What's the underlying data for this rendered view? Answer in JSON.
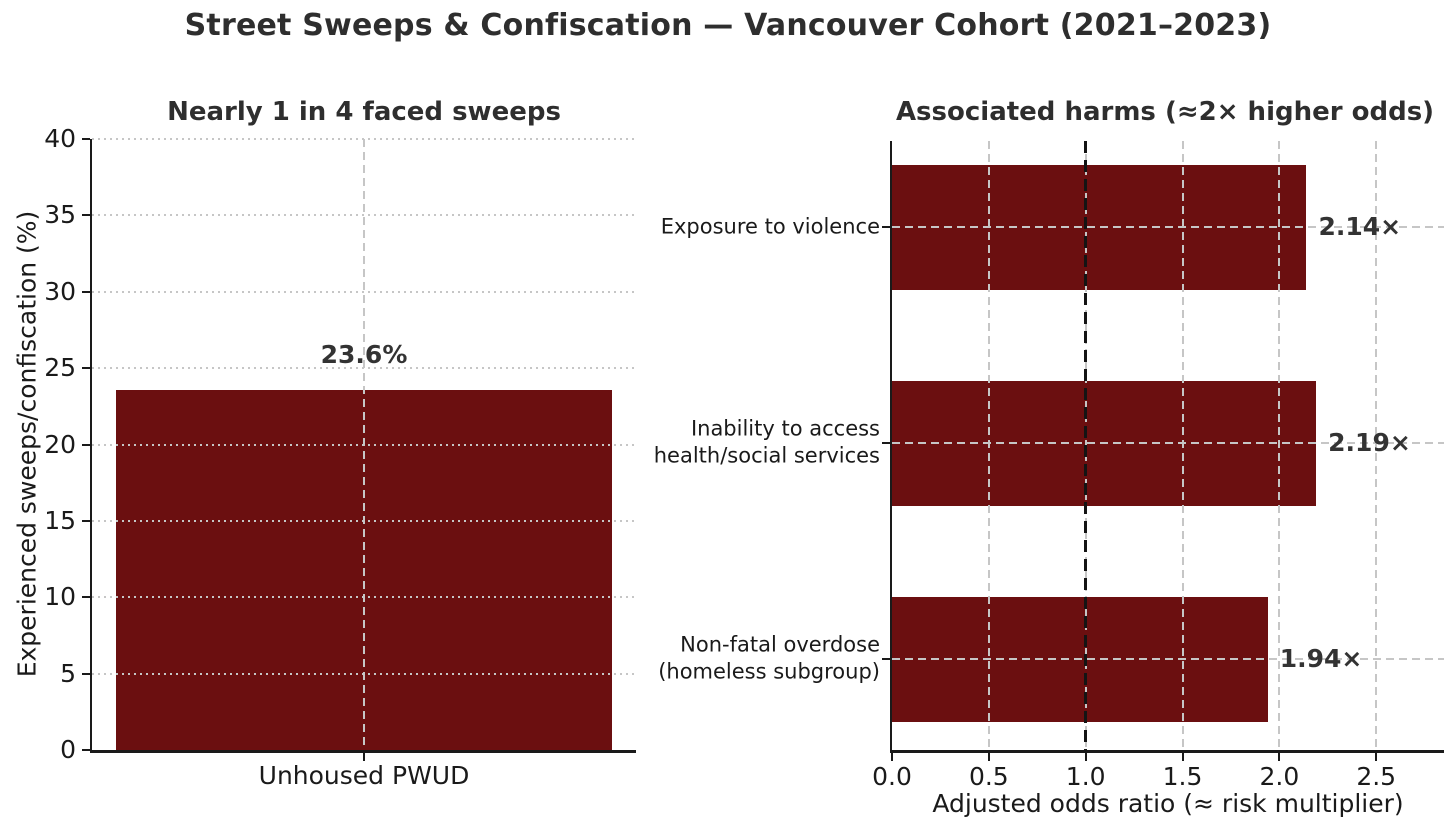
{
  "figure": {
    "title": "Street Sweeps & Confiscation — Vancouver Cohort (2021–2023)",
    "background": "#ffffff",
    "bar_color": "#6B0F10",
    "grid_color": "#c6c6c6",
    "reference_line_color": "#141414",
    "text_color": "#2e2e2e"
  },
  "chart_data": [
    {
      "type": "bar",
      "title": "Nearly 1 in 4 faced sweeps",
      "categories": [
        "Unhoused PWUD"
      ],
      "values": [
        23.6
      ],
      "value_labels": [
        "23.6%"
      ],
      "xlabel": "",
      "ylabel": "Experienced sweeps/confiscation (%)",
      "ylim": [
        0,
        40
      ],
      "yticks": [
        0,
        5,
        10,
        15,
        20,
        25,
        30,
        35,
        40
      ],
      "grid": "horizontal dotted gridlines + dashed vertical gridline at bar center, drawn over bar",
      "legend": "none"
    },
    {
      "type": "bar-horizontal",
      "title": "Associated harms (≈2× higher odds)",
      "categories": [
        "Exposure to violence",
        "Inability to access\nhealth/social services",
        "Non-fatal overdose\n(homeless subgroup)"
      ],
      "values": [
        2.14,
        2.19,
        1.94
      ],
      "value_labels": [
        "2.14×",
        "2.19×",
        "1.94×"
      ],
      "xlabel": "Adjusted odds ratio (≈ risk multiplier)",
      "ylabel": "",
      "xlim": [
        0,
        2.85
      ],
      "xticks": [
        "0.0",
        "0.5",
        "1.0",
        "1.5",
        "2.0",
        "2.5"
      ],
      "reference_line_x": 1.0,
      "grid": "dashed gray gridlines both directions, drawn over bars; black dashed reference line at x=1.0",
      "legend": "none"
    }
  ]
}
